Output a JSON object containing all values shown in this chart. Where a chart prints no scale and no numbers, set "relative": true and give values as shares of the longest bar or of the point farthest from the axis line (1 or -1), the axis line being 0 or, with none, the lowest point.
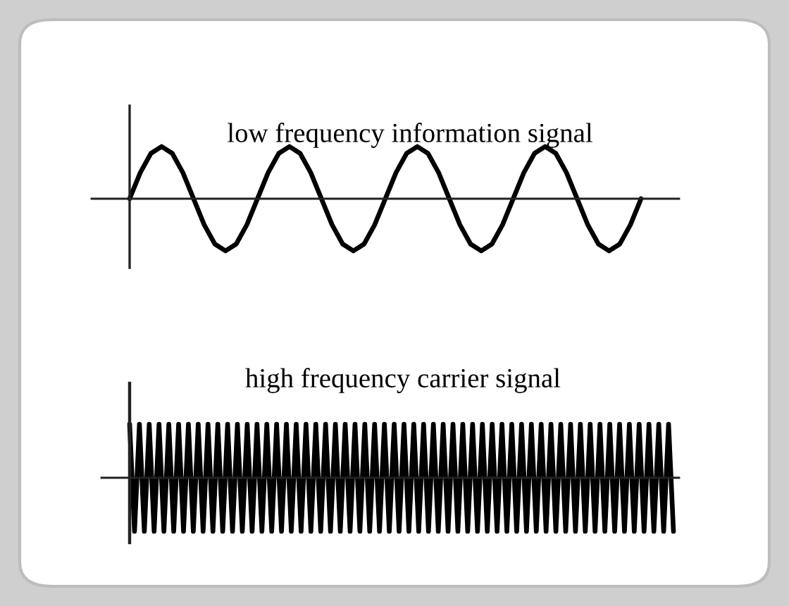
{
  "chart_data": [
    {
      "type": "line",
      "title": "low frequency information signal",
      "relative": true,
      "color": "#000000",
      "categories": [
        null,
        null,
        null,
        null,
        null,
        null,
        null,
        null,
        null,
        null,
        null,
        null,
        null,
        null,
        null,
        null,
        null,
        null,
        null,
        null,
        null,
        null,
        null,
        null,
        null,
        null,
        null,
        null,
        null,
        null,
        null,
        null,
        null,
        null,
        null,
        null,
        null,
        null,
        null,
        null,
        null,
        null,
        null,
        null,
        null,
        null,
        null,
        null,
        null
      ],
      "values": [
        0,
        0.5,
        0.87,
        1,
        0.87,
        0.5,
        0,
        -0.5,
        -0.87,
        -1,
        -0.87,
        -0.5,
        0,
        0.5,
        0.87,
        1,
        0.87,
        0.5,
        0,
        -0.5,
        -0.87,
        -1,
        -0.87,
        -0.5,
        0,
        0.5,
        0.87,
        1,
        0.87,
        0.5,
        0,
        -0.5,
        -0.87,
        -1,
        -0.87,
        -0.5,
        0,
        0.5,
        0.87,
        1,
        0.87,
        0.5,
        0,
        -0.5,
        -0.87,
        -1,
        -0.87,
        -0.5,
        0
      ]
    },
    {
      "type": "line",
      "title": "high frequency carrier signal",
      "relative": true,
      "color": "#000000",
      "categories": [
        null,
        null,
        null,
        null,
        null,
        null,
        null,
        null,
        null,
        null,
        null,
        null,
        null,
        null,
        null,
        null,
        null,
        null,
        null,
        null,
        null,
        null,
        null,
        null,
        null,
        null,
        null,
        null,
        null,
        null,
        null,
        null,
        null,
        null,
        null,
        null,
        null,
        null,
        null,
        null,
        null,
        null,
        null,
        null,
        null,
        null,
        null,
        null,
        null,
        null,
        null,
        null,
        null,
        null,
        null,
        null,
        null,
        null,
        null,
        null,
        null,
        null,
        null,
        null,
        null,
        null,
        null,
        null,
        null,
        null,
        null,
        null,
        null,
        null,
        null,
        null,
        null,
        null,
        null,
        null,
        null,
        null,
        null,
        null,
        null,
        null,
        null,
        null,
        null,
        null,
        null,
        null,
        null,
        null,
        null,
        null,
        null,
        null,
        null,
        null,
        null,
        null,
        null,
        null,
        null,
        null,
        null,
        null,
        null,
        null,
        null,
        null
      ],
      "values": [
        1,
        -1,
        1,
        -1,
        1,
        -1,
        1,
        -1,
        1,
        -1,
        1,
        -1,
        1,
        -1,
        1,
        -1,
        1,
        -1,
        1,
        -1,
        1,
        -1,
        1,
        -1,
        1,
        -1,
        1,
        -1,
        1,
        -1,
        1,
        -1,
        1,
        -1,
        1,
        -1,
        1,
        -1,
        1,
        -1,
        1,
        -1,
        1,
        -1,
        1,
        -1,
        1,
        -1,
        1,
        -1,
        1,
        -1,
        1,
        -1,
        1,
        -1,
        1,
        -1,
        1,
        -1,
        1,
        -1,
        1,
        -1,
        1,
        -1,
        1,
        -1,
        1,
        -1,
        1,
        -1,
        1,
        -1,
        1,
        -1,
        1,
        -1,
        1,
        -1,
        1,
        -1,
        1,
        -1,
        1,
        -1,
        1,
        -1,
        1,
        -1,
        1,
        -1,
        1,
        -1,
        1,
        -1,
        1,
        -1,
        1,
        -1,
        1,
        -1,
        1,
        -1,
        1,
        -1,
        1,
        -1,
        1,
        -1,
        1,
        -1
      ]
    }
  ]
}
